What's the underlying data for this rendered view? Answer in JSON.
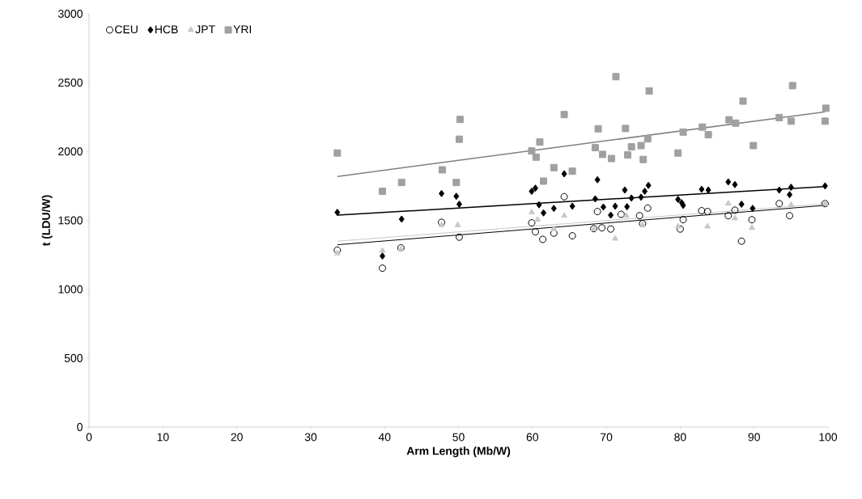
{
  "chart_data": {
    "type": "scatter",
    "xlabel": "Arm Length (Mb/W)",
    "ylabel": "t (LDU/W)",
    "xlim": [
      0,
      100
    ],
    "ylim": [
      0,
      3000
    ],
    "xticks": [
      0,
      10,
      20,
      30,
      40,
      50,
      60,
      70,
      80,
      90,
      100
    ],
    "yticks": [
      0,
      500,
      1000,
      1500,
      2000,
      2500,
      3000
    ],
    "grid": false,
    "legend": "top left",
    "series": [
      {
        "name": "CEU",
        "color": "#000000",
        "marker": "circle",
        "x": [
          33.6,
          39.7,
          42.2,
          47.7,
          50.1,
          59.9,
          60.4,
          61.4,
          62.9,
          64.3,
          65.4,
          68.8,
          68.3,
          69.4,
          70.6,
          72.0,
          74.5,
          75.6,
          74.9,
          80.0,
          80.4,
          82.9,
          83.7,
          86.5,
          87.4,
          89.7,
          88.3,
          93.4,
          94.8,
          99.6
        ],
        "values": [
          1284,
          1153,
          1300,
          1486,
          1378,
          1482,
          1417,
          1362,
          1407,
          1672,
          1388,
          1564,
          1440,
          1446,
          1437,
          1544,
          1534,
          1589,
          1476,
          1437,
          1505,
          1570,
          1564,
          1534,
          1574,
          1505,
          1349,
          1622,
          1534,
          1622
        ]
      },
      {
        "name": "HCB",
        "color": "#000000",
        "marker": "diamond",
        "x": [
          33.6,
          39.7,
          42.3,
          47.7,
          49.7,
          50.1,
          59.9,
          60.4,
          60.9,
          61.5,
          62.9,
          64.3,
          65.4,
          68.8,
          68.5,
          69.6,
          71.2,
          70.6,
          72.5,
          72.8,
          73.4,
          74.7,
          75.2,
          75.7,
          79.7,
          80.2,
          80.4,
          82.9,
          83.8,
          86.5,
          87.4,
          88.3,
          89.8,
          93.4,
          95.0,
          94.8,
          99.6
        ],
        "values": [
          1558,
          1241,
          1509,
          1695,
          1675,
          1617,
          1711,
          1734,
          1613,
          1554,
          1587,
          1838,
          1603,
          1795,
          1656,
          1597,
          1603,
          1538,
          1720,
          1599,
          1662,
          1668,
          1711,
          1754,
          1652,
          1628,
          1609,
          1726,
          1720,
          1779,
          1760,
          1617,
          1587,
          1720,
          1740,
          1687,
          1750
        ]
      },
      {
        "name": "JPT",
        "color": "#c8c8c8",
        "marker": "triangle",
        "x": [
          33.6,
          39.7,
          42.2,
          47.7,
          49.9,
          59.9,
          60.7,
          62.9,
          64.3,
          68.3,
          71.2,
          72.7,
          74.9,
          79.7,
          83.7,
          86.5,
          87.4,
          89.7,
          95.0,
          99.6
        ],
        "values": [
          1261,
          1280,
          1290,
          1466,
          1466,
          1558,
          1505,
          1437,
          1534,
          1437,
          1368,
          1534,
          1466,
          1456,
          1456,
          1622,
          1515,
          1446,
          1613,
          1622
        ]
      },
      {
        "name": "YRI",
        "color": "#a0a0a0",
        "marker": "square",
        "x": [
          33.6,
          39.7,
          42.3,
          47.8,
          50.2,
          50.1,
          49.7,
          61.0,
          59.9,
          60.5,
          62.9,
          61.5,
          64.3,
          65.4,
          71.3,
          75.8,
          68.9,
          72.6,
          68.5,
          69.5,
          70.7,
          72.9,
          73.4,
          74.7,
          75.6,
          75.0,
          80.4,
          79.7,
          83.0,
          83.8,
          88.5,
          86.6,
          87.5,
          89.9,
          93.4,
          95.0,
          95.2,
          99.7,
          99.6
        ],
        "values": [
          1989,
          1711,
          1775,
          1867,
          2233,
          2089,
          1775,
          2069,
          2004,
          1959,
          1883,
          1785,
          2268,
          1857,
          2543,
          2439,
          2165,
          2167,
          2028,
          1979,
          1949,
          1975,
          2034,
          2043,
          2092,
          1942,
          2141,
          1989,
          2177,
          2122,
          2366,
          2230,
          2206,
          2043,
          2246,
          2220,
          2478,
          2314,
          2220
        ]
      },
      {
        "type": "line",
        "color": "#000000",
        "x": [
          33.6,
          99.6
        ],
        "values": [
          1323,
          1609
        ]
      },
      {
        "type": "line",
        "color": "#000000",
        "x": [
          33.6,
          99.6
        ],
        "values": [
          1538,
          1746
        ]
      },
      {
        "type": "line",
        "color": "#c8c8c8",
        "x": [
          33.6,
          99.6
        ],
        "values": [
          1349,
          1620
        ]
      },
      {
        "type": "line",
        "color": "#808080",
        "x": [
          33.6,
          99.6
        ],
        "values": [
          1819,
          2288
        ]
      }
    ]
  }
}
